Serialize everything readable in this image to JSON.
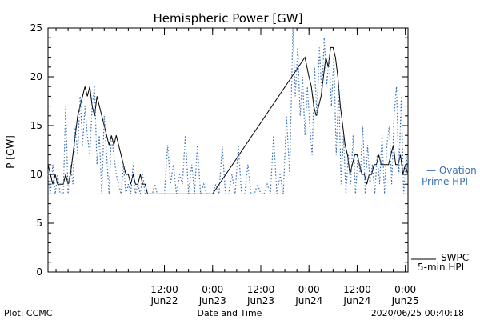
{
  "chart_data": {
    "type": "line",
    "title": "Hemispheric Power [GW]",
    "ylabel": "P [GW]",
    "xlabel": "Date and Time",
    "ylim": [
      0,
      25
    ],
    "yticks": [
      0,
      5,
      10,
      15,
      20,
      25
    ],
    "xlim": [
      "2020-06-21 07:00",
      "2020-06-25 00:40"
    ],
    "xticks": [
      {
        "x": "2020-06-22 12:00",
        "time": "12:00",
        "date": "Jun22"
      },
      {
        "x": "2020-06-23 00:00",
        "time": "0:00",
        "date": "Jun23"
      },
      {
        "x": "2020-06-23 12:00",
        "time": "12:00",
        "date": "Jun23"
      },
      {
        "x": "2020-06-24 00:00",
        "time": "0:00",
        "date": "Jun24"
      },
      {
        "x": "2020-06-24 12:00",
        "time": "12:00",
        "date": "Jun24"
      },
      {
        "x": "2020-06-25 00:00",
        "time": "0:00",
        "date": "Jun25"
      }
    ],
    "grid": false,
    "legend_placement": "right",
    "series": [
      {
        "legend": [
          "SWPC",
          "5-min HPI"
        ],
        "style": "solid",
        "color": "#000000",
        "points": [
          [
            "2020-06-21 07:00",
            11
          ],
          [
            "2020-06-21 07:36",
            10
          ],
          [
            "2020-06-21 08:12",
            9
          ],
          [
            "2020-06-21 08:48",
            10
          ],
          [
            "2020-06-21 09:24",
            9
          ],
          [
            "2020-06-21 10:00",
            9
          ],
          [
            "2020-06-21 10:48",
            9
          ],
          [
            "2020-06-21 11:24",
            10
          ],
          [
            "2020-06-21 12:00",
            9
          ],
          [
            "2020-06-21 12:36",
            10
          ],
          [
            "2020-06-21 13:12",
            12
          ],
          [
            "2020-06-21 13:48",
            14
          ],
          [
            "2020-06-21 14:24",
            16
          ],
          [
            "2020-06-21 15:00",
            17
          ],
          [
            "2020-06-21 15:36",
            18
          ],
          [
            "2020-06-21 16:12",
            19
          ],
          [
            "2020-06-21 16:48",
            18
          ],
          [
            "2020-06-21 17:24",
            19
          ],
          [
            "2020-06-21 18:00",
            17
          ],
          [
            "2020-06-21 18:36",
            16
          ],
          [
            "2020-06-21 19:12",
            18
          ],
          [
            "2020-06-21 19:48",
            17
          ],
          [
            "2020-06-21 20:24",
            16
          ],
          [
            "2020-06-21 21:00",
            15
          ],
          [
            "2020-06-21 21:36",
            14
          ],
          [
            "2020-06-21 22:12",
            13
          ],
          [
            "2020-06-21 22:48",
            14
          ],
          [
            "2020-06-21 23:24",
            13
          ],
          [
            "2020-06-22 00:00",
            14
          ],
          [
            "2020-06-22 00:36",
            13
          ],
          [
            "2020-06-22 01:12",
            12
          ],
          [
            "2020-06-22 01:48",
            11
          ],
          [
            "2020-06-22 02:24",
            10
          ],
          [
            "2020-06-22 03:00",
            10
          ],
          [
            "2020-06-22 03:36",
            9
          ],
          [
            "2020-06-22 04:12",
            10
          ],
          [
            "2020-06-22 04:48",
            9
          ],
          [
            "2020-06-22 05:24",
            9
          ],
          [
            "2020-06-22 06:00",
            10
          ],
          [
            "2020-06-22 06:36",
            9
          ],
          [
            "2020-06-22 07:12",
            9
          ],
          [
            "2020-06-22 07:48",
            8
          ],
          [
            "2020-06-22 09:12",
            8
          ],
          [
            "2020-06-22 10:00",
            8
          ],
          [
            "2020-06-22 11:00",
            8
          ],
          [
            "2020-06-23 00:00",
            8
          ],
          [
            "2020-06-23 23:00",
            22
          ],
          [
            "2020-06-24 00:00",
            20
          ],
          [
            "2020-06-24 00:36",
            19
          ],
          [
            "2020-06-24 01:12",
            17
          ],
          [
            "2020-06-24 01:48",
            16
          ],
          [
            "2020-06-24 02:24",
            17
          ],
          [
            "2020-06-24 03:00",
            18
          ],
          [
            "2020-06-24 03:36",
            20
          ],
          [
            "2020-06-24 04:12",
            22
          ],
          [
            "2020-06-24 04:48",
            21
          ],
          [
            "2020-06-24 05:24",
            23
          ],
          [
            "2020-06-24 06:00",
            23
          ],
          [
            "2020-06-24 06:36",
            22
          ],
          [
            "2020-06-24 07:12",
            20
          ],
          [
            "2020-06-24 07:48",
            17
          ],
          [
            "2020-06-24 08:24",
            15
          ],
          [
            "2020-06-24 09:00",
            13
          ],
          [
            "2020-06-24 09:36",
            12
          ],
          [
            "2020-06-24 10:12",
            10
          ],
          [
            "2020-06-24 10:48",
            11
          ],
          [
            "2020-06-24 11:24",
            12
          ],
          [
            "2020-06-24 12:00",
            12
          ],
          [
            "2020-06-24 12:36",
            11
          ],
          [
            "2020-06-24 13:12",
            10
          ],
          [
            "2020-06-24 13:48",
            10
          ],
          [
            "2020-06-24 14:24",
            9
          ],
          [
            "2020-06-24 15:00",
            10
          ],
          [
            "2020-06-24 15:36",
            10
          ],
          [
            "2020-06-24 16:12",
            11
          ],
          [
            "2020-06-24 16:48",
            11
          ],
          [
            "2020-06-24 17:24",
            12
          ],
          [
            "2020-06-24 18:00",
            11
          ],
          [
            "2020-06-24 18:36",
            11
          ],
          [
            "2020-06-24 19:12",
            11
          ],
          [
            "2020-06-24 19:48",
            11
          ],
          [
            "2020-06-24 20:24",
            12
          ],
          [
            "2020-06-24 21:00",
            13
          ],
          [
            "2020-06-24 21:36",
            11
          ],
          [
            "2020-06-24 22:12",
            11
          ],
          [
            "2020-06-24 22:48",
            12
          ],
          [
            "2020-06-24 23:24",
            10
          ],
          [
            "2020-06-25 00:00",
            11
          ],
          [
            "2020-06-25 00:36",
            10
          ]
        ]
      },
      {
        "legend": [
          "— Ovation",
          "Prime HPI"
        ],
        "style": "dotted",
        "color": "#3a6fb3",
        "points": [
          [
            "2020-06-21 07:00",
            10
          ],
          [
            "2020-06-21 07:36",
            8
          ],
          [
            "2020-06-21 08:12",
            11
          ],
          [
            "2020-06-21 08:48",
            8
          ],
          [
            "2020-06-21 09:24",
            10
          ],
          [
            "2020-06-21 10:00",
            8
          ],
          [
            "2020-06-21 10:48",
            8
          ],
          [
            "2020-06-21 11:24",
            17
          ],
          [
            "2020-06-21 12:00",
            8
          ],
          [
            "2020-06-21 12:36",
            11
          ],
          [
            "2020-06-21 13:12",
            9
          ],
          [
            "2020-06-21 13:48",
            15
          ],
          [
            "2020-06-21 14:24",
            12
          ],
          [
            "2020-06-21 15:00",
            18
          ],
          [
            "2020-06-21 15:36",
            13
          ],
          [
            "2020-06-21 16:12",
            17
          ],
          [
            "2020-06-21 16:48",
            14
          ],
          [
            "2020-06-21 17:24",
            12
          ],
          [
            "2020-06-21 18:00",
            17
          ],
          [
            "2020-06-21 18:36",
            19
          ],
          [
            "2020-06-21 19:12",
            11
          ],
          [
            "2020-06-21 19:48",
            14
          ],
          [
            "2020-06-21 20:24",
            8
          ],
          [
            "2020-06-21 21:00",
            16
          ],
          [
            "2020-06-21 21:36",
            12
          ],
          [
            "2020-06-21 22:12",
            8
          ],
          [
            "2020-06-21 22:48",
            14
          ],
          [
            "2020-06-21 23:24",
            12
          ],
          [
            "2020-06-22 00:00",
            10
          ],
          [
            "2020-06-22 00:36",
            9
          ],
          [
            "2020-06-22 01:12",
            8
          ],
          [
            "2020-06-22 01:48",
            11
          ],
          [
            "2020-06-22 02:24",
            8
          ],
          [
            "2020-06-22 03:00",
            9
          ],
          [
            "2020-06-22 03:36",
            8
          ],
          [
            "2020-06-22 04:12",
            11
          ],
          [
            "2020-06-22 04:48",
            8
          ],
          [
            "2020-06-22 05:24",
            9
          ],
          [
            "2020-06-22 06:00",
            8
          ],
          [
            "2020-06-22 06:36",
            10
          ],
          [
            "2020-06-22 07:12",
            8
          ],
          [
            "2020-06-22 07:48",
            8
          ],
          [
            "2020-06-22 08:24",
            8
          ],
          [
            "2020-06-22 09:00",
            8
          ],
          [
            "2020-06-22 09:36",
            9
          ],
          [
            "2020-06-22 10:12",
            8
          ],
          [
            "2020-06-22 10:48",
            8
          ],
          [
            "2020-06-22 11:24",
            8
          ],
          [
            "2020-06-22 12:00",
            8
          ],
          [
            "2020-06-22 12:48",
            13
          ],
          [
            "2020-06-22 13:30",
            9
          ],
          [
            "2020-06-22 14:12",
            11
          ],
          [
            "2020-06-22 15:00",
            8
          ],
          [
            "2020-06-22 15:48",
            10
          ],
          [
            "2020-06-22 16:30",
            9
          ],
          [
            "2020-06-22 17:12",
            14
          ],
          [
            "2020-06-22 18:00",
            8
          ],
          [
            "2020-06-22 18:48",
            11
          ],
          [
            "2020-06-22 19:30",
            8
          ],
          [
            "2020-06-22 20:12",
            13
          ],
          [
            "2020-06-22 21:00",
            8
          ],
          [
            "2020-06-22 21:48",
            9
          ],
          [
            "2020-06-22 22:30",
            8
          ],
          [
            "2020-06-22 23:12",
            8
          ],
          [
            "2020-06-23 00:00",
            8
          ],
          [
            "2020-06-23 00:48",
            9
          ],
          [
            "2020-06-23 01:36",
            8
          ],
          [
            "2020-06-23 02:24",
            13
          ],
          [
            "2020-06-23 03:12",
            8
          ],
          [
            "2020-06-23 04:00",
            8
          ],
          [
            "2020-06-23 04:48",
            10
          ],
          [
            "2020-06-23 05:36",
            8
          ],
          [
            "2020-06-23 06:24",
            13
          ],
          [
            "2020-06-23 07:12",
            8
          ],
          [
            "2020-06-23 08:00",
            8
          ],
          [
            "2020-06-23 08:48",
            11
          ],
          [
            "2020-06-23 09:36",
            8
          ],
          [
            "2020-06-23 10:24",
            8
          ],
          [
            "2020-06-23 11:12",
            9
          ],
          [
            "2020-06-23 12:00",
            8
          ],
          [
            "2020-06-23 12:48",
            8
          ],
          [
            "2020-06-23 13:36",
            9
          ],
          [
            "2020-06-23 14:24",
            8
          ],
          [
            "2020-06-23 15:12",
            14
          ],
          [
            "2020-06-23 16:00",
            8
          ],
          [
            "2020-06-23 16:48",
            10
          ],
          [
            "2020-06-23 17:36",
            8
          ],
          [
            "2020-06-23 18:24",
            16
          ],
          [
            "2020-06-23 19:12",
            10
          ],
          [
            "2020-06-23 20:00",
            25
          ],
          [
            "2020-06-23 20:36",
            18
          ],
          [
            "2020-06-23 21:12",
            23
          ],
          [
            "2020-06-23 21:48",
            16
          ],
          [
            "2020-06-23 22:24",
            20
          ],
          [
            "2020-06-23 23:00",
            14
          ],
          [
            "2020-06-23 23:36",
            19
          ],
          [
            "2020-06-24 00:12",
            15
          ],
          [
            "2020-06-24 00:48",
            12
          ],
          [
            "2020-06-24 01:24",
            21
          ],
          [
            "2020-06-24 02:00",
            16
          ],
          [
            "2020-06-24 02:36",
            23
          ],
          [
            "2020-06-24 03:12",
            18
          ],
          [
            "2020-06-24 03:48",
            24
          ],
          [
            "2020-06-24 04:24",
            19
          ],
          [
            "2020-06-24 05:00",
            22
          ],
          [
            "2020-06-24 05:36",
            17
          ],
          [
            "2020-06-24 06:12",
            22
          ],
          [
            "2020-06-24 06:48",
            12
          ],
          [
            "2020-06-24 07:24",
            19
          ],
          [
            "2020-06-24 08:00",
            9
          ],
          [
            "2020-06-24 08:36",
            14
          ],
          [
            "2020-06-24 09:12",
            8
          ],
          [
            "2020-06-24 09:48",
            12
          ],
          [
            "2020-06-24 10:24",
            9
          ],
          [
            "2020-06-24 11:00",
            14
          ],
          [
            "2020-06-24 11:36",
            8
          ],
          [
            "2020-06-24 12:12",
            12
          ],
          [
            "2020-06-24 12:48",
            10
          ],
          [
            "2020-06-24 13:24",
            15
          ],
          [
            "2020-06-24 14:00",
            8
          ],
          [
            "2020-06-24 14:36",
            13
          ],
          [
            "2020-06-24 15:12",
            9
          ],
          [
            "2020-06-24 15:48",
            11
          ],
          [
            "2020-06-24 16:24",
            8
          ],
          [
            "2020-06-24 17:00",
            12
          ],
          [
            "2020-06-24 17:36",
            9
          ],
          [
            "2020-06-24 18:12",
            14
          ],
          [
            "2020-06-24 18:48",
            8
          ],
          [
            "2020-06-24 19:24",
            13
          ],
          [
            "2020-06-24 20:00",
            15
          ],
          [
            "2020-06-24 20:36",
            9
          ],
          [
            "2020-06-24 21:12",
            16
          ],
          [
            "2020-06-24 21:48",
            19
          ],
          [
            "2020-06-24 22:24",
            10
          ],
          [
            "2020-06-24 23:00",
            18
          ],
          [
            "2020-06-24 23:36",
            8
          ],
          [
            "2020-06-25 00:12",
            12
          ],
          [
            "2020-06-25 00:40",
            10
          ]
        ]
      }
    ]
  },
  "footer": {
    "plot_credit": "Plot: CCMC",
    "timestamp": "2020/06/25 00:40:18"
  }
}
